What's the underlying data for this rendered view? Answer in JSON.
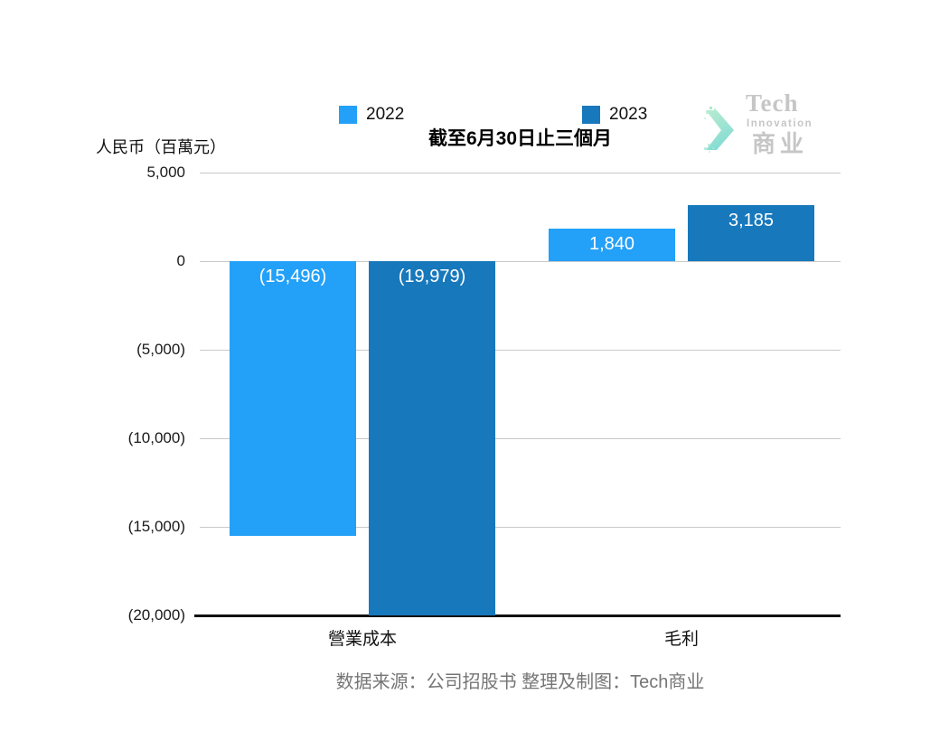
{
  "page": {
    "background": "#ffffff"
  },
  "header": {
    "axis_unit_label": "人民币（百萬元）",
    "title": "截至6月30日止三個月"
  },
  "legend": {
    "items": [
      {
        "label": "2022",
        "color": "#23A0F8"
      },
      {
        "label": "2023",
        "color": "#1878BC"
      }
    ]
  },
  "logo": {
    "line1": "Tech",
    "line2": "Innovation",
    "line3": "商业",
    "text_color": "#c6c6c6",
    "icon": "chevron-right-icon",
    "icon_colors": [
      "#b9ecd0",
      "#84dcd4"
    ]
  },
  "footer": {
    "source_text": "数据来源：公司招股书  整理及制图：Tech商业"
  },
  "chart_data": {
    "type": "bar",
    "title": "截至6月30日止三個月",
    "ylabel": "人民币（百萬元）",
    "categories": [
      "營業成本",
      "毛利"
    ],
    "series": [
      {
        "name": "2022",
        "color": "#23A0F8",
        "values": [
          -15496,
          1840
        ],
        "data_labels": [
          "(15,496)",
          "1,840"
        ]
      },
      {
        "name": "2023",
        "color": "#1878BC",
        "values": [
          -19979,
          3185
        ],
        "data_labels": [
          "(19,979)",
          "3,185"
        ]
      }
    ],
    "ylim": [
      -20000,
      5000
    ],
    "ytick_step": 5000,
    "yticks": [
      {
        "value": 5000,
        "label": "5,000"
      },
      {
        "value": 0,
        "label": "0"
      },
      {
        "value": -5000,
        "label": "(5,000)"
      },
      {
        "value": -10000,
        "label": "(10,000)"
      },
      {
        "value": -15000,
        "label": "(15,000)"
      },
      {
        "value": -20000,
        "label": "(20,000)"
      }
    ],
    "grid": true,
    "legend_position": "top",
    "negative_format": "parentheses"
  }
}
